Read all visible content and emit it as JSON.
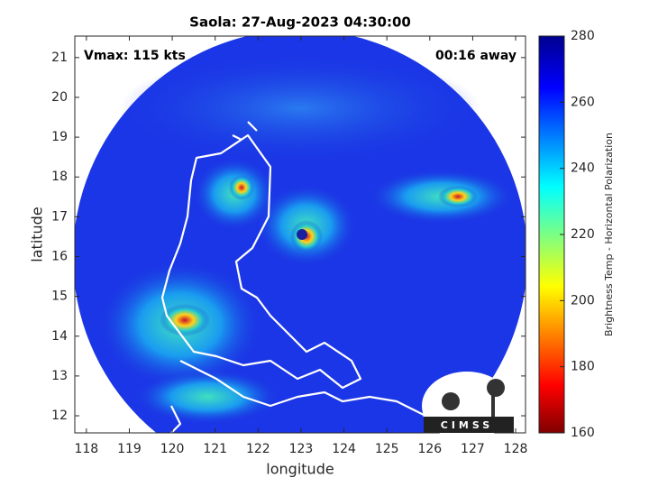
{
  "chart_data": {
    "type": "map",
    "title": "Saola: 27-Aug-2023 04:30:00",
    "annotations": [
      "Vmax: 115 kts",
      "00:16 away"
    ],
    "x_label": "longitude",
    "y_label": "latitude",
    "xlim": [
      117.73,
      128.23
    ],
    "ylim": [
      11.57,
      21.54
    ],
    "xticks": [
      118,
      119,
      120,
      121,
      122,
      123,
      124,
      125,
      126,
      127,
      128
    ],
    "yticks": [
      12,
      13,
      14,
      15,
      16,
      17,
      18,
      19,
      20,
      21
    ],
    "colorbar": {
      "label": "Brightness Temp - Horizontal Polarization",
      "lim": [
        160,
        280
      ],
      "ticks": [
        160,
        180,
        200,
        220,
        240,
        260,
        280
      ]
    },
    "logo": "CIMSS"
  }
}
